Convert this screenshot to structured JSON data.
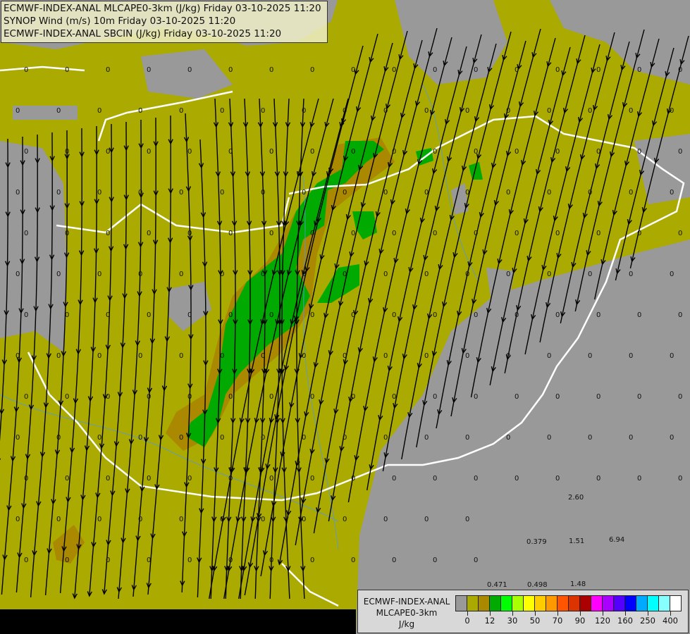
{
  "title_box": {
    "lines": [
      "ECMWF-INDEX-ANAL MLCAPE0-3km (J/kg) Friday 03-10-2025 11:20",
      "SYNOP Wind (m/s) 10m Friday 03-10-2025 11:20",
      "ECMWF-INDEX-ANAL SBCIN (J/kg) Friday 03-10-2025 11:20"
    ]
  },
  "legend": {
    "title": [
      "ECMWF-INDEX-ANAL",
      "MLCAPE0-3km",
      "J/kg"
    ],
    "colors": [
      "#999999",
      "#aaaa00",
      "#aa8800",
      "#00aa00",
      "#00ff00",
      "#aaff00",
      "#ffff00",
      "#ffcc00",
      "#ff9900",
      "#ff5500",
      "#dd3300",
      "#aa0000",
      "#ff00ff",
      "#aa00ff",
      "#5500ff",
      "#0000ff",
      "#00aaff",
      "#00ffff",
      "#88ffff",
      "#ffffff"
    ],
    "ticks": [
      "0",
      "12",
      "30",
      "50",
      "70",
      "90",
      "120",
      "160",
      "250",
      "400"
    ]
  },
  "map": {
    "colors": {
      "background": "#aaaa00",
      "no_cape": "#999999",
      "low": "#aa8800",
      "green": "#00aa00",
      "border": "#ffffff",
      "rivers": "#5599dd",
      "streamlines": "#000000"
    },
    "station_values": [
      "2.60",
      "0.379",
      "1.51",
      "6.94",
      "0.471",
      "0.498",
      "1.48"
    ],
    "zero_label": "0"
  }
}
